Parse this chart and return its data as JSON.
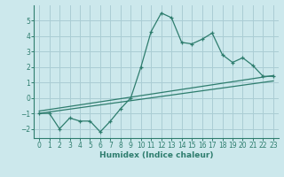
{
  "line1_x": [
    0,
    1,
    2,
    3,
    4,
    5,
    6,
    7,
    8,
    9,
    10,
    11,
    12,
    13,
    14,
    15,
    16,
    17,
    18,
    19,
    20,
    21,
    22,
    23
  ],
  "line1_y": [
    -1.0,
    -1.0,
    -2.0,
    -1.3,
    -1.5,
    -1.5,
    -2.2,
    -1.5,
    -0.7,
    0.0,
    2.0,
    4.3,
    5.5,
    5.2,
    3.6,
    3.5,
    3.8,
    4.2,
    2.8,
    2.3,
    2.6,
    2.1,
    1.4,
    1.4
  ],
  "line2_x": [
    0,
    23
  ],
  "line2_y": [
    -1.0,
    1.1
  ],
  "line3_x": [
    0,
    23
  ],
  "line3_y": [
    -0.85,
    1.45
  ],
  "color": "#2e7d6e",
  "bg_color": "#cce8ec",
  "grid_color": "#aacdd4",
  "xlabel": "Humidex (Indice chaleur)",
  "xlim": [
    -0.5,
    23.5
  ],
  "ylim": [
    -2.6,
    6.0
  ],
  "yticks": [
    -2,
    -1,
    0,
    1,
    2,
    3,
    4,
    5
  ],
  "xticks": [
    0,
    1,
    2,
    3,
    4,
    5,
    6,
    7,
    8,
    9,
    10,
    11,
    12,
    13,
    14,
    15,
    16,
    17,
    18,
    19,
    20,
    21,
    22,
    23
  ],
  "xlabel_fontsize": 6.5,
  "tick_fontsize": 5.5,
  "ylabel_fontsize": 6
}
